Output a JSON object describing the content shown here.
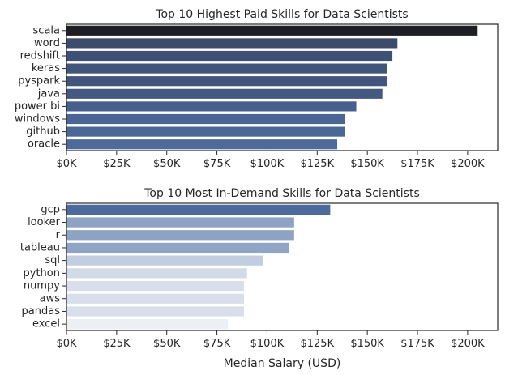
{
  "chart_data": [
    {
      "type": "bar",
      "orientation": "horizontal",
      "title": "Top 10 Highest Paid Skills for Data Scientists",
      "xlabel": "",
      "ylabel": "",
      "categories": [
        "scala",
        "word",
        "redshift",
        "keras",
        "pyspark",
        "java",
        "power bi",
        "windows",
        "github",
        "oracle"
      ],
      "values": [
        205000,
        165000,
        162500,
        160000,
        160000,
        157500,
        144500,
        139000,
        139000,
        135000
      ],
      "colors": [
        "#1d1f24",
        "#3d4b6c",
        "#3f5075",
        "#41557b",
        "#42567d",
        "#435980",
        "#475f8c",
        "#4a6594",
        "#4b6796",
        "#4d6a9a"
      ],
      "xlim": [
        0,
        215000
      ],
      "xticks": [
        0,
        25000,
        50000,
        75000,
        100000,
        125000,
        150000,
        175000,
        200000
      ],
      "xtick_labels": [
        "$0K",
        "$25K",
        "$50K",
        "$75K",
        "$100K",
        "$125K",
        "$150K",
        "$175K",
        "$200K"
      ],
      "grid": false
    },
    {
      "type": "bar",
      "orientation": "horizontal",
      "title": "Top 10 Most In-Demand Skills for Data Scientists",
      "xlabel": "Median Salary (USD)",
      "ylabel": "",
      "categories": [
        "gcp",
        "looker",
        "r",
        "tableau",
        "sql",
        "python",
        "numpy",
        "aws",
        "pandas",
        "excel"
      ],
      "values": [
        131500,
        113500,
        113500,
        111000,
        98000,
        90000,
        88500,
        88500,
        88500,
        80500
      ],
      "colors": [
        "#4c6a9c",
        "#8ea3c4",
        "#8ea3c4",
        "#90a5c5",
        "#c3cde0",
        "#d3dae7",
        "#d9dfea",
        "#d9dfea",
        "#d9dfea",
        "#eceff4"
      ],
      "xlim": [
        0,
        215000
      ],
      "xticks": [
        0,
        25000,
        50000,
        75000,
        100000,
        125000,
        150000,
        175000,
        200000
      ],
      "xtick_labels": [
        "$0K",
        "$25K",
        "$50K",
        "$75K",
        "$100K",
        "$125K",
        "$150K",
        "$175K",
        "$200K"
      ],
      "grid": false
    }
  ]
}
